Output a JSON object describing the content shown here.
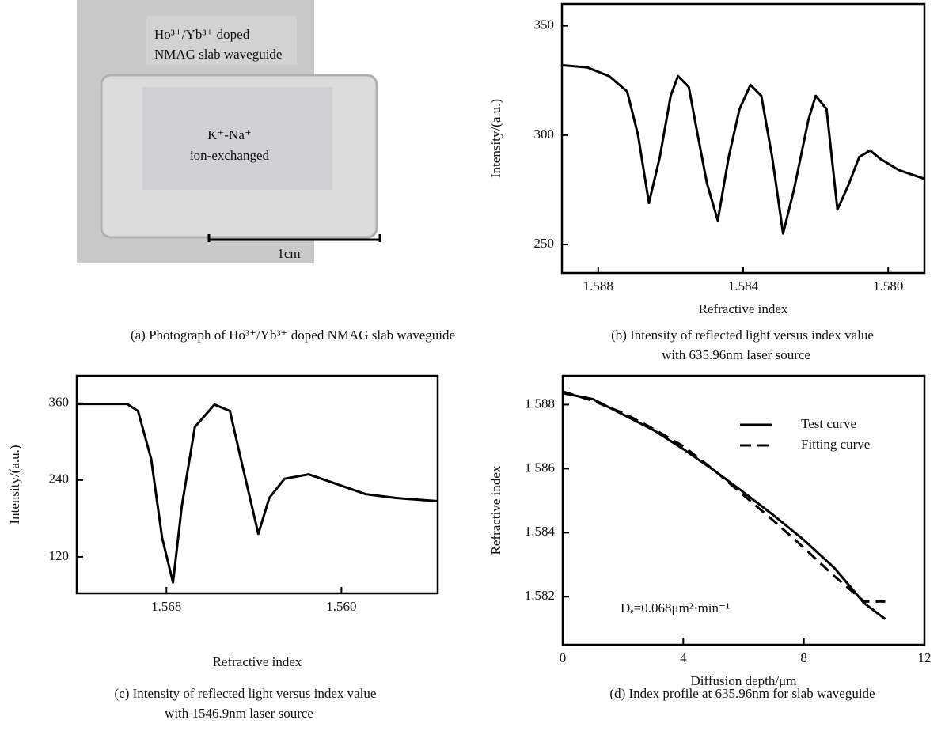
{
  "photo": {
    "labels": [
      "Ho³⁺/Yb³⁺ doped",
      "NMAG slab waveguide",
      "K⁺-Na⁺",
      "ion-exchanged"
    ],
    "scale": "1cm",
    "caption": "(a) Photograph of Ho³⁺/Yb³⁺ doped NMAG slab waveguide"
  },
  "chart_data": [
    {
      "type": "line",
      "xlabel": "Refractive index",
      "ylabel": "Intensity/(a.u.)",
      "caption": [
        "(b) Intensity of reflected light versus index value",
        "with 635.96nm laser source"
      ],
      "xlim": [
        1.589,
        1.579
      ],
      "xticks": [
        1.588,
        1.584,
        {
          "value": 1.58,
          "label": "1.580"
        }
      ],
      "ylim": [
        237,
        360
      ],
      "yticks": [
        250,
        300,
        350
      ],
      "color": "#000000",
      "x": [
        1.589,
        1.5883,
        1.5877,
        1.5872,
        1.5869,
        1.5866,
        1.5863,
        1.586,
        1.5858,
        1.5855,
        1.5853,
        1.585,
        1.5847,
        1.5844,
        1.5841,
        1.5838,
        1.5835,
        1.5832,
        1.5829,
        1.5826,
        1.5822,
        1.582,
        1.5817,
        1.5814,
        1.5811,
        1.5808,
        1.5805,
        1.5802,
        1.5797,
        1.579
      ],
      "values": [
        332,
        331,
        327,
        320,
        300,
        269,
        290,
        318,
        327,
        322,
        304,
        278,
        261,
        290,
        312,
        323,
        318,
        290,
        255,
        275,
        307,
        318,
        312,
        266,
        277,
        290,
        293,
        289,
        284,
        280
      ]
    },
    {
      "type": "line",
      "xlabel": "Refractive index",
      "ylabel": "Intensity/(a.u.)",
      "caption": [
        "(c) Intensity of reflected light versus index value",
        "with 1546.9nm laser source"
      ],
      "xlim": [
        1.5721,
        1.5556
      ],
      "xticks": [
        1.568,
        {
          "value": 1.56,
          "label": "1.560"
        }
      ],
      "ylim": [
        63,
        403
      ],
      "yticks": [
        120,
        240,
        360
      ],
      "color": "#000000",
      "x": [
        1.5721,
        1.5698,
        1.5693,
        1.5687,
        1.5682,
        1.5677,
        1.5673,
        1.5667,
        1.5658,
        1.5651,
        1.5646,
        1.5638,
        1.5633,
        1.5626,
        1.5615,
        1.5604,
        1.5589,
        1.5575,
        1.5556
      ],
      "values": [
        359,
        359,
        348,
        273,
        150,
        80,
        199,
        323,
        358,
        348,
        273,
        156,
        212,
        242,
        249,
        236,
        218,
        212,
        207
      ]
    },
    {
      "type": "line",
      "xlabel": "Diffusion depth/μm",
      "ylabel": "Refractive index",
      "caption": [
        "(d) Index profile at 635.96nm for slab waveguide"
      ],
      "annotation": "Dₑ=0.068μm²·min⁻¹",
      "xlim": [
        0,
        12
      ],
      "xticks": [
        0,
        4,
        8,
        12
      ],
      "ylim": [
        1.5805,
        1.5889
      ],
      "yticks": [
        1.582,
        1.584,
        1.586,
        1.588
      ],
      "legend": "upper right",
      "x": [
        0,
        1,
        2,
        3,
        4,
        5,
        6,
        7,
        8,
        9,
        10,
        10.7
      ],
      "series": [
        {
          "name": "Test curve",
          "color": "#000000",
          "line_style": "solid",
          "values": [
            1.58836,
            1.58817,
            1.58769,
            1.58721,
            1.58661,
            1.58596,
            1.58526,
            1.58454,
            1.58377,
            1.58291,
            1.5818,
            1.5813
          ]
        },
        {
          "name": "Fitting curve",
          "color": "#000000",
          "line_style": "dashed",
          "values": [
            1.58841,
            1.58812,
            1.58774,
            1.58725,
            1.5867,
            1.58597,
            1.58517,
            1.58437,
            1.58353,
            1.58265,
            1.58185,
            1.58185
          ]
        }
      ]
    }
  ]
}
